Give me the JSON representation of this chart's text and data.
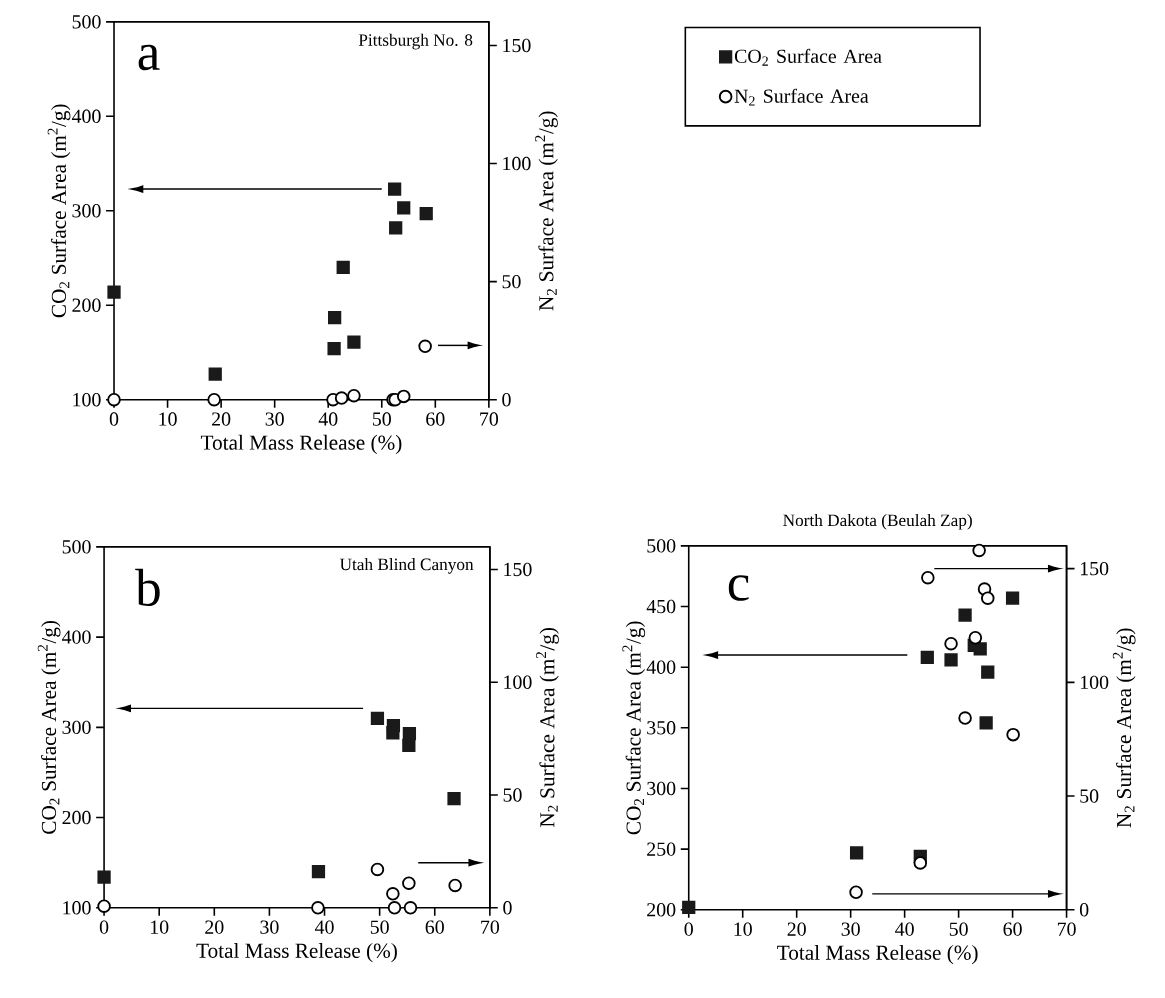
{
  "chart_data": [
    {
      "type": "scatter",
      "title": "Pittsburgh No. 8",
      "annotations": [
        "a"
      ],
      "xlabel": "Total Mass Release (%)",
      "ylabel": "CO$_{2}$ Surface Area (m$^{2}$/g)",
      "y2label": "N$_{2}$ Surface Area (m$^{2}$/g)",
      "xlim": [
        0,
        70
      ],
      "xticks": [
        0,
        10,
        20,
        30,
        40,
        50,
        60,
        70
      ],
      "ylim": [
        100,
        500
      ],
      "yticks": [
        100,
        200,
        300,
        400,
        500
      ],
      "y2lim": [
        0,
        160
      ],
      "y2ticks": [
        0,
        50,
        100,
        150
      ],
      "legend": "right",
      "series": [
        {
          "name": "CO$_{2}$ Surface Area",
          "color": "#1a1a1a",
          "marker": "square",
          "x": [
            0,
            18.9,
            41.2,
            41.1,
            42.8,
            44.8,
            52.4,
            52.6,
            54.1,
            58.3
          ],
          "values": [
            214,
            127,
            187,
            154,
            240,
            161,
            323,
            282,
            303,
            297
          ]
        },
        {
          "name": "N$_{2}$ Surface Area",
          "color": "#000000",
          "marker": "circle",
          "axis": "y2",
          "x": [
            0,
            18.7,
            40.9,
            42.5,
            44.8,
            52.1,
            52.5,
            54.1,
            58.1
          ],
          "values": [
            0,
            0,
            0,
            0.7,
            1.7,
            0,
            0,
            1.4,
            22.6
          ]
        }
      ]
    },
    {
      "type": "scatter",
      "title": "Utah Blind Canyon",
      "annotations": [
        "b"
      ],
      "xlabel": "Total Mass Release (%)",
      "ylabel": "CO$_{2}$ Surface Area (m$^{2}$/g)",
      "y2label": "N$_{2}$ Surface Area (m$^{2}$/g)",
      "xlim": [
        0,
        70
      ],
      "xticks": [
        0,
        10,
        20,
        30,
        40,
        50,
        60,
        70
      ],
      "ylim": [
        100,
        500
      ],
      "yticks": [
        100,
        200,
        300,
        400,
        500
      ],
      "y2lim": [
        0,
        160
      ],
      "y2ticks": [
        0,
        50,
        100,
        150
      ],
      "series": [
        {
          "color": "#1a1a1a",
          "marker": "square",
          "x": [
            0,
            38.9,
            49.6,
            52.5,
            52.4,
            55.4,
            55.3,
            63.5
          ],
          "values": [
            134,
            140,
            310,
            302,
            294,
            293,
            280,
            221
          ]
        },
        {
          "color": "#000000",
          "marker": "circle",
          "axis": "y2",
          "x": [
            0,
            38.8,
            49.6,
            52.4,
            52.7,
            55.3,
            55.6,
            63.7
          ],
          "values": [
            0.7,
            0,
            17,
            6.2,
            0,
            10.9,
            0,
            9.9
          ]
        }
      ]
    },
    {
      "type": "scatter",
      "title": "North Dakota (Beulah Zap)",
      "annotations": [
        "c"
      ],
      "xlabel": "Total Mass Release (%)",
      "ylabel": "CO$_{2}$ Surface Area (m$^{2}$/g)",
      "y2label": "N$_{2}$ Surface Area (m$^{2}$/g)",
      "xlim": [
        0,
        70
      ],
      "xticks": [
        0,
        10,
        20,
        30,
        40,
        50,
        60,
        70
      ],
      "ylim": [
        200,
        500
      ],
      "yticks": [
        200,
        250,
        300,
        350,
        400,
        450,
        500
      ],
      "y2lim": [
        0,
        160
      ],
      "y2ticks": [
        0,
        50,
        100,
        150
      ],
      "series": [
        {
          "color": "#1a1a1a",
          "marker": "square",
          "x": [
            0,
            31.1,
            42.9,
            44.2,
            48.6,
            51.2,
            52.9,
            54.0,
            55.4,
            55.1,
            60.0
          ],
          "values": [
            202,
            247,
            244,
            408,
            406,
            443,
            418,
            415,
            396,
            354,
            457
          ]
        },
        {
          "color": "#000000",
          "marker": "circle",
          "axis": "y2",
          "x": [
            31.0,
            42.9,
            44.3,
            53.8,
            54.8,
            55.4,
            48.6,
            53.1,
            51.2,
            60.1
          ],
          "values": [
            7.7,
            20.6,
            146,
            158,
            141,
            137,
            117,
            119.6,
            84.3,
            77
          ]
        }
      ]
    }
  ]
}
